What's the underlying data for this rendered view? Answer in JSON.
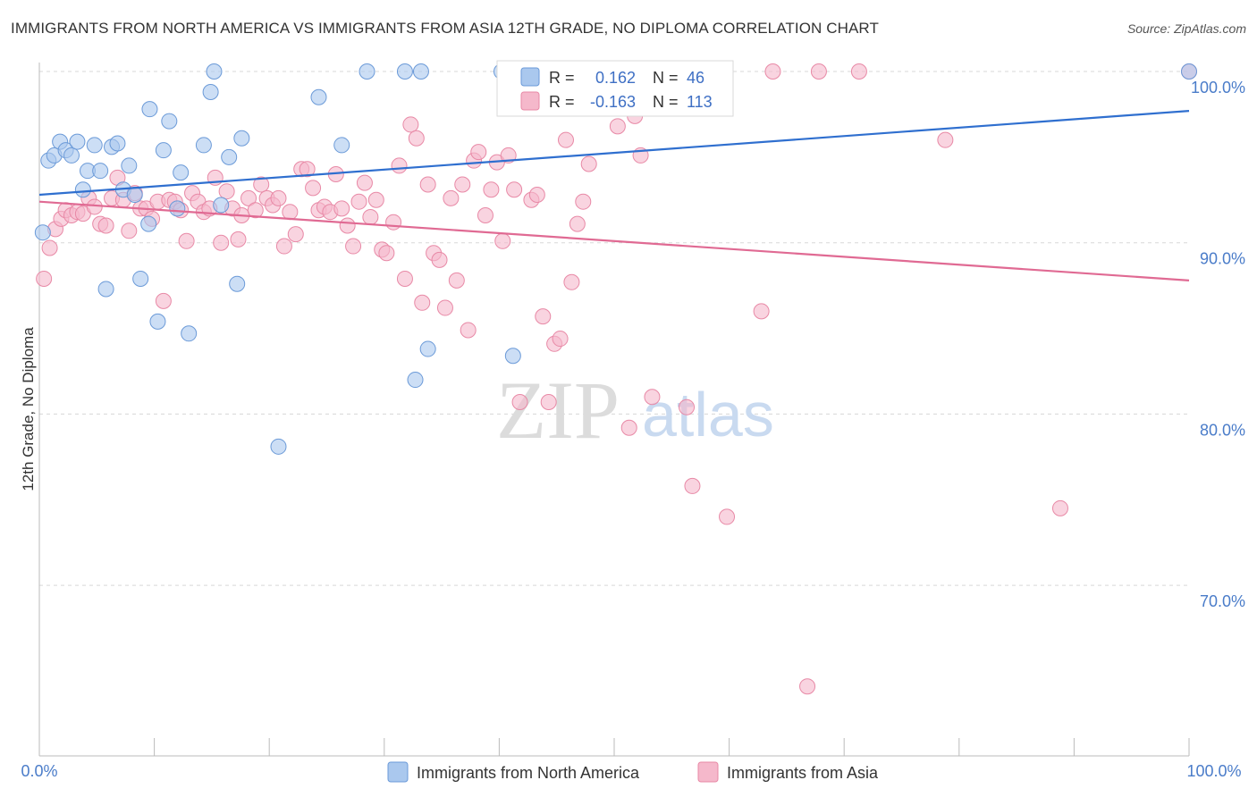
{
  "header": {
    "title": "IMMIGRANTS FROM NORTH AMERICA VS IMMIGRANTS FROM ASIA 12TH GRADE, NO DIPLOMA CORRELATION CHART",
    "source": "Source: ZipAtlas.com"
  },
  "watermark": {
    "zip": "ZIP",
    "atlas": "atlas"
  },
  "legend": {
    "r_label": "R =",
    "n_label": "N =",
    "blue": {
      "r": "0.162",
      "n": "46"
    },
    "pink": {
      "r": "-0.163",
      "n": "113"
    }
  },
  "colors": {
    "blue_fill": "#aac8ee",
    "blue_stroke": "#6b9ad8",
    "blue_line": "#2f6fcf",
    "pink_fill": "#f5b8cb",
    "pink_stroke": "#e889a6",
    "pink_line": "#e06a93",
    "tick_text": "#4a7cc9",
    "grid": "#d8d8d8"
  },
  "chart_data": {
    "type": "scatter",
    "title": "IMMIGRANTS FROM NORTH AMERICA VS IMMIGRANTS FROM ASIA 12TH GRADE, NO DIPLOMA CORRELATION CHART",
    "xlabel": "",
    "ylabel": "12th Grade, No Diploma",
    "xlim": [
      0,
      100
    ],
    "ylim": [
      60,
      101.5
    ],
    "x_tick_labels": [
      "0.0%",
      "100.0%"
    ],
    "y_ticks": [
      70,
      80,
      90,
      100
    ],
    "y_tick_labels": [
      "70.0%",
      "80.0%",
      "90.0%",
      "100.0%"
    ],
    "series": [
      {
        "name": "Immigrants from North America",
        "color": "blue",
        "trend": [
          [
            0,
            92.8
          ],
          [
            100,
            97.7
          ]
        ],
        "points": [
          [
            0.3,
            90.6
          ],
          [
            0.8,
            94.8
          ],
          [
            1.3,
            95.1
          ],
          [
            1.8,
            95.9
          ],
          [
            2.3,
            95.4
          ],
          [
            2.8,
            95.1
          ],
          [
            3.3,
            95.9
          ],
          [
            3.8,
            93.1
          ],
          [
            4.2,
            94.2
          ],
          [
            4.8,
            95.7
          ],
          [
            5.3,
            94.2
          ],
          [
            5.8,
            87.3
          ],
          [
            6.3,
            95.6
          ],
          [
            6.8,
            95.8
          ],
          [
            7.3,
            93.1
          ],
          [
            7.8,
            94.5
          ],
          [
            8.3,
            92.8
          ],
          [
            8.8,
            87.9
          ],
          [
            9.5,
            91.1
          ],
          [
            9.6,
            97.8
          ],
          [
            10.3,
            85.4
          ],
          [
            10.8,
            95.4
          ],
          [
            11.3,
            97.1
          ],
          [
            12.3,
            94.1
          ],
          [
            12.0,
            92.0
          ],
          [
            13.0,
            84.7
          ],
          [
            14.3,
            95.7
          ],
          [
            14.9,
            98.8
          ],
          [
            15.2,
            100.0
          ],
          [
            15.8,
            92.2
          ],
          [
            16.5,
            95.0
          ],
          [
            17.2,
            87.6
          ],
          [
            17.6,
            96.1
          ],
          [
            20.8,
            78.1
          ],
          [
            24.3,
            98.5
          ],
          [
            26.3,
            95.7
          ],
          [
            28.5,
            100.0
          ],
          [
            31.8,
            100.0
          ],
          [
            32.7,
            82.0
          ],
          [
            33.2,
            100.0
          ],
          [
            33.8,
            83.8
          ],
          [
            40.2,
            100.0
          ],
          [
            41.2,
            83.4
          ],
          [
            47.0,
            100.0
          ],
          [
            55.0,
            100.0
          ],
          [
            100.0,
            100.0
          ]
        ]
      },
      {
        "name": "Immigrants from Asia",
        "color": "pink",
        "trend": [
          [
            0,
            92.4
          ],
          [
            100,
            87.8
          ]
        ],
        "points": [
          [
            0.4,
            87.9
          ],
          [
            0.9,
            89.7
          ],
          [
            1.4,
            90.8
          ],
          [
            1.9,
            91.4
          ],
          [
            2.3,
            91.9
          ],
          [
            2.8,
            91.6
          ],
          [
            3.3,
            91.8
          ],
          [
            3.8,
            91.7
          ],
          [
            4.3,
            92.6
          ],
          [
            4.8,
            92.1
          ],
          [
            5.3,
            91.1
          ],
          [
            5.8,
            91.0
          ],
          [
            6.3,
            92.6
          ],
          [
            6.8,
            93.8
          ],
          [
            7.3,
            92.5
          ],
          [
            7.8,
            90.7
          ],
          [
            8.3,
            92.9
          ],
          [
            8.8,
            92.0
          ],
          [
            9.3,
            92.0
          ],
          [
            9.8,
            91.4
          ],
          [
            10.3,
            92.4
          ],
          [
            10.8,
            86.6
          ],
          [
            11.3,
            92.5
          ],
          [
            11.8,
            92.4
          ],
          [
            12.3,
            91.9
          ],
          [
            12.8,
            90.1
          ],
          [
            13.3,
            92.9
          ],
          [
            13.8,
            92.4
          ],
          [
            14.3,
            91.8
          ],
          [
            14.8,
            92.0
          ],
          [
            15.3,
            93.8
          ],
          [
            15.8,
            90.0
          ],
          [
            16.3,
            93.0
          ],
          [
            16.8,
            92.0
          ],
          [
            17.3,
            90.2
          ],
          [
            17.6,
            91.6
          ],
          [
            18.2,
            92.6
          ],
          [
            18.8,
            91.9
          ],
          [
            19.3,
            93.4
          ],
          [
            19.8,
            92.6
          ],
          [
            20.3,
            92.2
          ],
          [
            20.8,
            92.6
          ],
          [
            21.3,
            89.8
          ],
          [
            21.8,
            91.8
          ],
          [
            22.3,
            90.5
          ],
          [
            22.8,
            94.3
          ],
          [
            23.3,
            94.3
          ],
          [
            23.8,
            93.2
          ],
          [
            24.3,
            91.9
          ],
          [
            24.8,
            92.1
          ],
          [
            25.3,
            91.8
          ],
          [
            25.8,
            94.0
          ],
          [
            26.3,
            92.0
          ],
          [
            26.8,
            91.0
          ],
          [
            27.3,
            89.8
          ],
          [
            27.8,
            92.4
          ],
          [
            28.3,
            93.5
          ],
          [
            28.8,
            91.5
          ],
          [
            29.3,
            92.5
          ],
          [
            29.8,
            89.6
          ],
          [
            30.2,
            89.4
          ],
          [
            30.8,
            91.2
          ],
          [
            31.3,
            94.5
          ],
          [
            31.8,
            87.9
          ],
          [
            32.3,
            96.9
          ],
          [
            32.8,
            96.1
          ],
          [
            33.3,
            86.5
          ],
          [
            33.8,
            93.4
          ],
          [
            34.3,
            89.4
          ],
          [
            34.8,
            89.0
          ],
          [
            35.3,
            86.2
          ],
          [
            35.8,
            92.6
          ],
          [
            36.3,
            87.8
          ],
          [
            36.8,
            93.4
          ],
          [
            37.3,
            84.9
          ],
          [
            37.8,
            94.8
          ],
          [
            38.2,
            95.3
          ],
          [
            38.8,
            91.6
          ],
          [
            39.3,
            93.1
          ],
          [
            39.8,
            94.7
          ],
          [
            40.3,
            90.1
          ],
          [
            40.8,
            95.1
          ],
          [
            41.3,
            93.1
          ],
          [
            41.8,
            80.7
          ],
          [
            42.8,
            92.5
          ],
          [
            43.3,
            92.8
          ],
          [
            43.8,
            85.7
          ],
          [
            44.3,
            80.7
          ],
          [
            44.8,
            84.1
          ],
          [
            45.3,
            84.4
          ],
          [
            45.8,
            96.0
          ],
          [
            46.3,
            87.7
          ],
          [
            46.8,
            91.1
          ],
          [
            47.3,
            92.4
          ],
          [
            47.8,
            94.6
          ],
          [
            50.3,
            96.8
          ],
          [
            50.8,
            100.0
          ],
          [
            51.3,
            79.2
          ],
          [
            51.8,
            97.4
          ],
          [
            52.3,
            95.1
          ],
          [
            52.8,
            100.0
          ],
          [
            53.3,
            81.0
          ],
          [
            56.3,
            80.4
          ],
          [
            56.8,
            75.8
          ],
          [
            59.8,
            74.0
          ],
          [
            62.8,
            86.0
          ],
          [
            63.8,
            100.0
          ],
          [
            66.8,
            64.1
          ],
          [
            67.8,
            100.0
          ],
          [
            71.3,
            100.0
          ],
          [
            78.8,
            96.0
          ],
          [
            88.8,
            74.5
          ],
          [
            100.0,
            100.0
          ]
        ]
      }
    ]
  },
  "bottom_legend": {
    "blue_label": "Immigrants from North America",
    "pink_label": "Immigrants from Asia"
  }
}
